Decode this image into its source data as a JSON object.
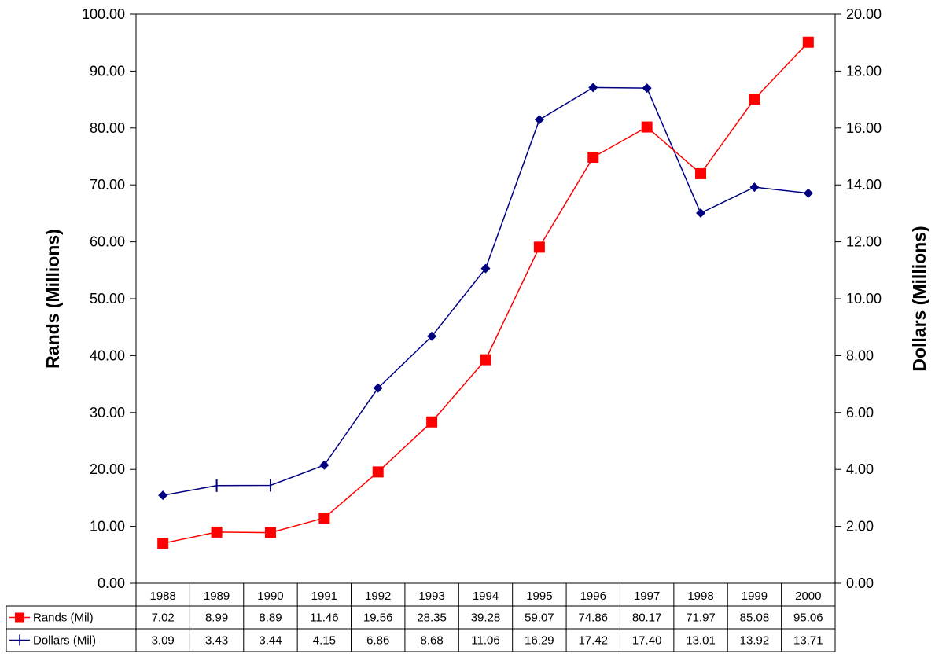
{
  "chart_data": {
    "type": "line",
    "categories": [
      "1988",
      "1989",
      "1990",
      "1991",
      "1992",
      "1993",
      "1994",
      "1995",
      "1996",
      "1997",
      "1998",
      "1999",
      "2000"
    ],
    "title": "",
    "ylabel": "Rands (Millions)",
    "y2label": "Dollars (Millions)",
    "ylim": [
      0,
      100
    ],
    "y2lim": [
      0,
      20
    ],
    "y_ticks": [
      "0.00",
      "10.00",
      "20.00",
      "30.00",
      "40.00",
      "50.00",
      "60.00",
      "70.00",
      "80.00",
      "90.00",
      "100.00"
    ],
    "y2_ticks": [
      "0.00",
      "2.00",
      "4.00",
      "6.00",
      "8.00",
      "10.00",
      "12.00",
      "14.00",
      "16.00",
      "18.00",
      "20.00"
    ],
    "grid": false,
    "legend_placement": "data table below plot",
    "series": [
      {
        "name": "Rands (Mil)",
        "axis": "left",
        "color": "#ff0000",
        "marker": "square",
        "values": [
          7.02,
          8.99,
          8.89,
          11.46,
          19.56,
          28.35,
          39.28,
          59.07,
          74.86,
          80.17,
          71.97,
          85.08,
          95.06
        ],
        "labels": [
          "7.02",
          "8.99",
          "8.89",
          "11.46",
          "19.56",
          "28.35",
          "39.28",
          "59.07",
          "74.86",
          "80.17",
          "71.97",
          "85.08",
          "95.06"
        ]
      },
      {
        "name": "Dollars (Mil)",
        "axis": "right",
        "color": "#000080",
        "marker": "diamond",
        "marker_plus_points": [
          1,
          2
        ],
        "values": [
          3.09,
          3.43,
          3.44,
          4.15,
          6.86,
          8.68,
          11.06,
          16.29,
          17.42,
          17.4,
          13.01,
          13.92,
          13.71
        ],
        "labels": [
          "3.09",
          "3.43",
          "3.44",
          "4.15",
          "6.86",
          "8.68",
          "11.06",
          "16.29",
          "17.42",
          "17.40",
          "13.01",
          "13.92",
          "13.71"
        ]
      }
    ]
  }
}
